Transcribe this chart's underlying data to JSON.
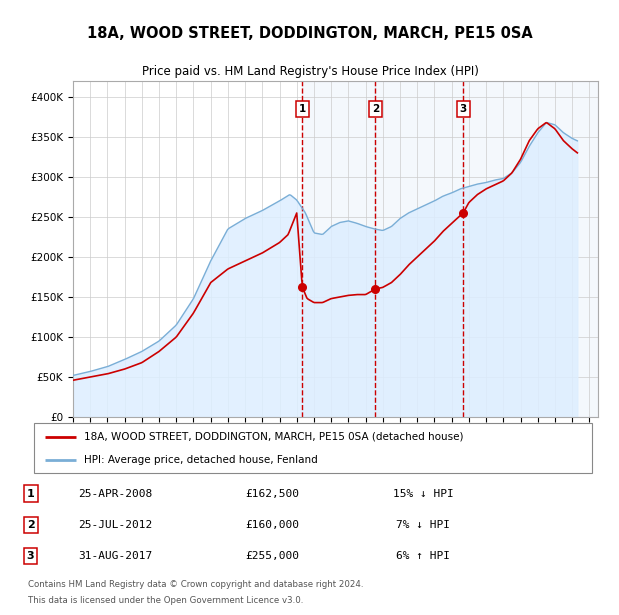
{
  "title": "18A, WOOD STREET, DODDINGTON, MARCH, PE15 0SA",
  "subtitle": "Price paid vs. HM Land Registry's House Price Index (HPI)",
  "ylabel_ticks": [
    "£0",
    "£50K",
    "£100K",
    "£150K",
    "£200K",
    "£250K",
    "£300K",
    "£350K",
    "£400K"
  ],
  "ytick_values": [
    0,
    50000,
    100000,
    150000,
    200000,
    250000,
    300000,
    350000,
    400000
  ],
  "ylim": [
    0,
    420000
  ],
  "xlim_start": 1995.0,
  "xlim_end": 2025.5,
  "price_paid_color": "#cc0000",
  "hpi_color": "#7aaed6",
  "hpi_fill_color": "#ddeeff",
  "grid_color": "#cccccc",
  "transaction_line_color": "#cc0000",
  "legend_label_red": "18A, WOOD STREET, DODDINGTON, MARCH, PE15 0SA (detached house)",
  "legend_label_blue": "HPI: Average price, detached house, Fenland",
  "footer_line1": "Contains HM Land Registry data © Crown copyright and database right 2024.",
  "footer_line2": "This data is licensed under the Open Government Licence v3.0.",
  "transactions": [
    {
      "num": 1,
      "date": "25-APR-2008",
      "price": "£162,500",
      "pct": "15%",
      "dir": "↓",
      "x_year": 2008.32,
      "y_val": 162500
    },
    {
      "num": 2,
      "date": "25-JUL-2012",
      "price": "£160,000",
      "pct": "7%",
      "dir": "↓",
      "x_year": 2012.57,
      "y_val": 160000
    },
    {
      "num": 3,
      "date": "31-AUG-2017",
      "price": "£255,000",
      "pct": "6%",
      "dir": "↑",
      "x_year": 2017.67,
      "y_val": 255000
    }
  ]
}
